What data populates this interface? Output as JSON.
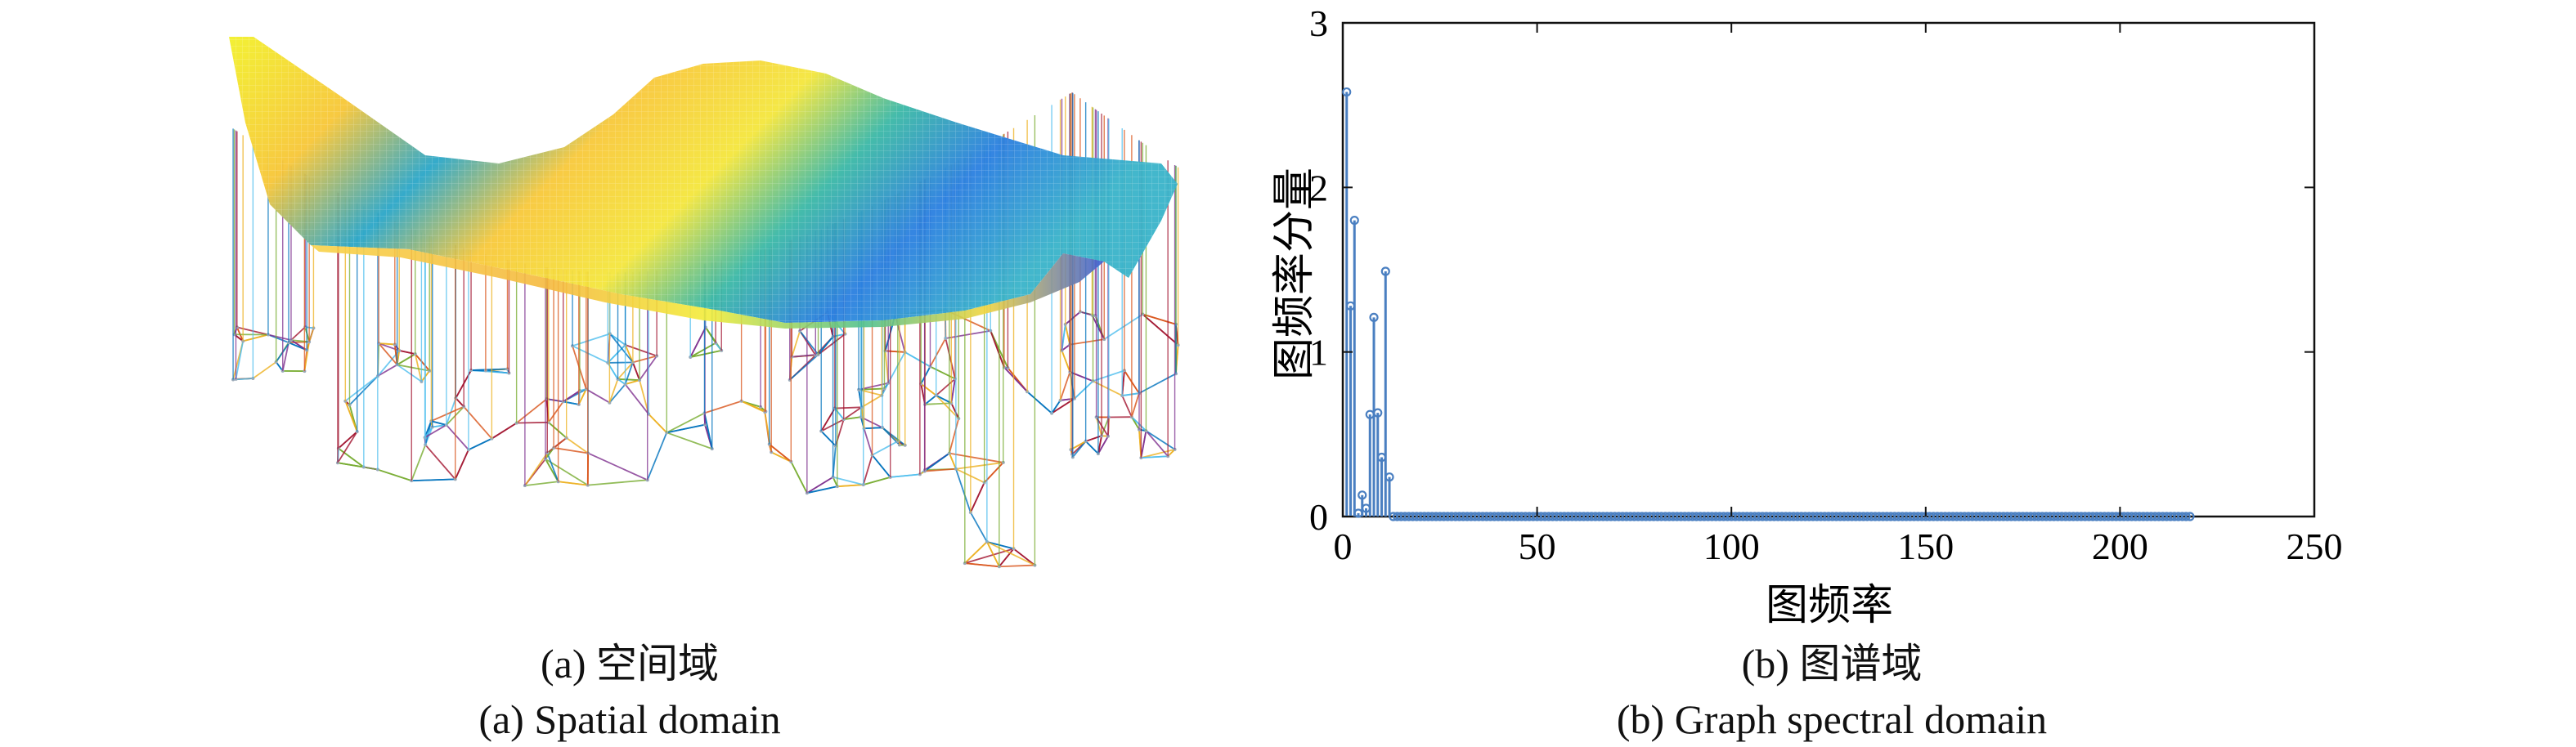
{
  "spatial_panel": {
    "caption_cn": "(a) 空间域",
    "caption_en": "(a) Spatial domain",
    "colormap": [
      "#3e26a8",
      "#2a7fe0",
      "#16b9be",
      "#6fcb6c",
      "#e4c92c",
      "#f9fb0e"
    ],
    "stem_colors": [
      "#0072bd",
      "#d95319",
      "#edb120",
      "#7e2f8e",
      "#77ac30",
      "#4dbeee",
      "#a2142f"
    ]
  },
  "spectral_panel": {
    "caption_cn": "(b) 图谱域",
    "caption_en": "(b) Graph spectral domain"
  },
  "chart_data": {
    "type": "stem",
    "xlabel": "图频率",
    "ylabel": "图频率分量",
    "xlim": [
      0,
      250
    ],
    "ylim": [
      0,
      3
    ],
    "xticks": [
      0,
      50,
      100,
      150,
      200,
      250
    ],
    "yticks": [
      0,
      1,
      2,
      3
    ],
    "grid": false,
    "color": "#4a7fc1",
    "n_points": 218,
    "nonzero_points": [
      {
        "x": 1,
        "y": 2.58
      },
      {
        "x": 2,
        "y": 1.28
      },
      {
        "x": 3,
        "y": 1.8
      },
      {
        "x": 4,
        "y": 0.02
      },
      {
        "x": 5,
        "y": 0.13
      },
      {
        "x": 6,
        "y": 0.05
      },
      {
        "x": 7,
        "y": 0.62
      },
      {
        "x": 8,
        "y": 1.21
      },
      {
        "x": 9,
        "y": 0.63
      },
      {
        "x": 10,
        "y": 0.36
      },
      {
        "x": 11,
        "y": 1.49
      },
      {
        "x": 12,
        "y": 0.24
      }
    ]
  }
}
